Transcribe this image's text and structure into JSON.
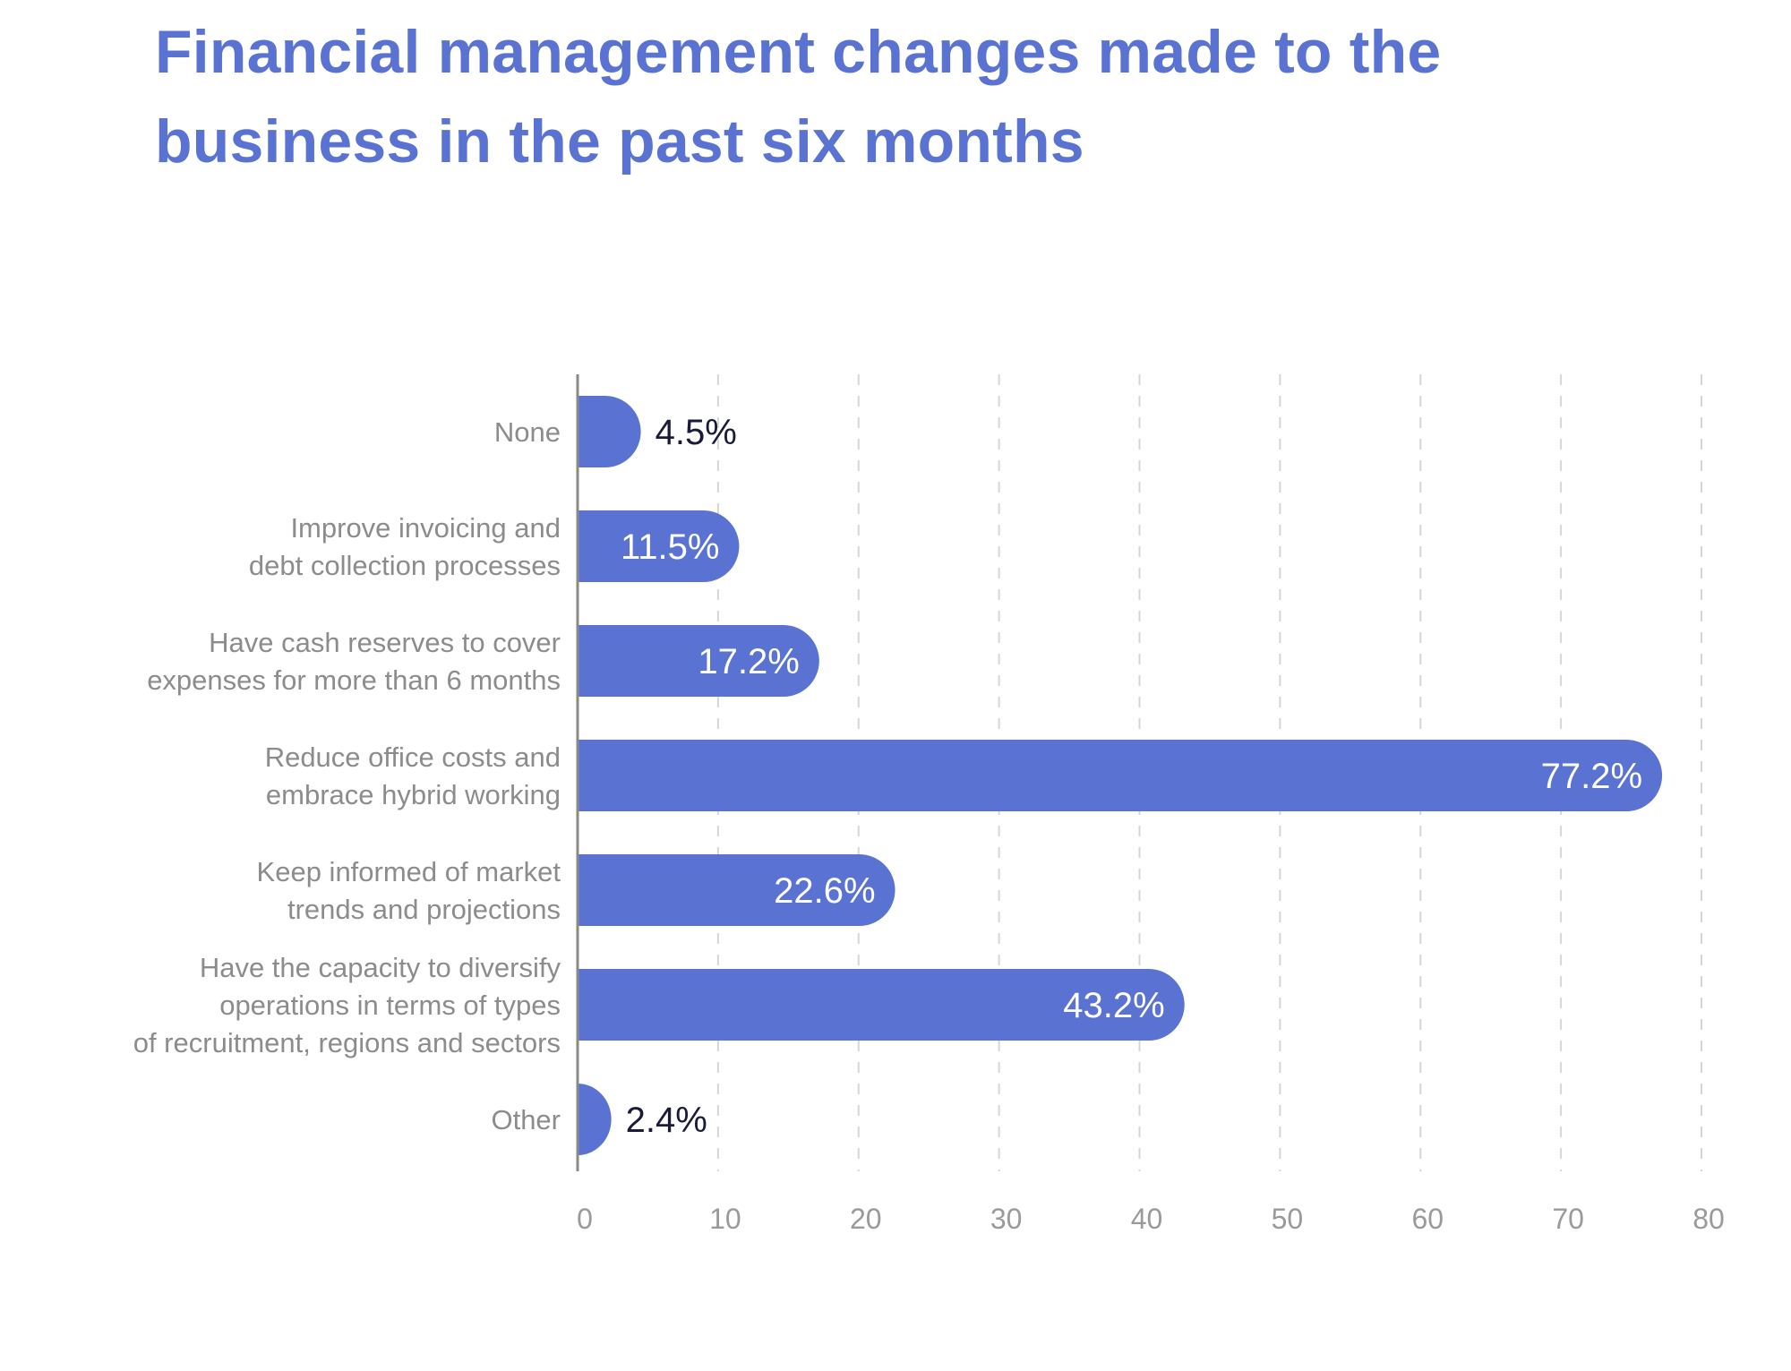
{
  "chart_data": {
    "type": "bar",
    "orientation": "horizontal",
    "title": "Financial management changes made to the business in the past six months",
    "categories": [
      [
        "None"
      ],
      [
        "Improve invoicing and",
        "debt collection processes"
      ],
      [
        "Have cash reserves to cover",
        "expenses for more than 6 months"
      ],
      [
        "Reduce office costs and",
        "embrace hybrid working"
      ],
      [
        "Keep informed of market",
        "trends and projections"
      ],
      [
        "Have the capacity to diversify",
        "operations in terms of types",
        "of recruitment, regions and sectors"
      ],
      [
        "Other"
      ]
    ],
    "values": [
      4.5,
      11.5,
      17.2,
      77.2,
      22.6,
      43.2,
      2.4
    ],
    "value_labels": [
      "4.5%",
      "11.5%",
      "17.2%",
      "77.2%",
      "22.6%",
      "43.2%",
      "2.4%"
    ],
    "xlim": [
      0,
      80
    ],
    "xticks": [
      0,
      10,
      20,
      30,
      40,
      50,
      60,
      70,
      80
    ],
    "xlabel": "",
    "ylabel": "",
    "grid": "vertical dashed",
    "colors": {
      "bar": "#5a73d2",
      "title": "#5a73d2",
      "label_inside": "#ffffff",
      "label_outside": "#1a1a3a",
      "category_text": "#8c8c8c",
      "tick_text": "#9a9a9a",
      "grid": "#d6d6d6",
      "axis": "#8a8a8a"
    }
  }
}
